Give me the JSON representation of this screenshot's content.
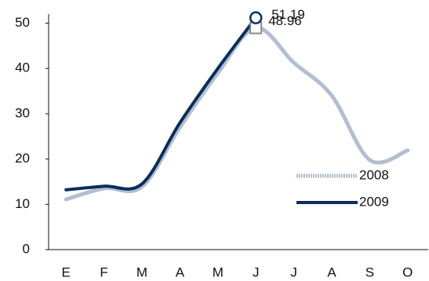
{
  "chart_data": {
    "type": "line",
    "categories": [
      "E",
      "F",
      "M",
      "A",
      "M",
      "J",
      "J",
      "A",
      "S",
      "O"
    ],
    "series": [
      {
        "name": "2008",
        "color": "#b3bfd0",
        "values": [
          11.1,
          13.5,
          13.9,
          27,
          39,
          48.96,
          41.3,
          34,
          19.8,
          21.9
        ]
      },
      {
        "name": "2009",
        "color": "#0b2d5a",
        "values": [
          13.2,
          14,
          14.5,
          28,
          40,
          51.19,
          null,
          null,
          null,
          null
        ]
      }
    ],
    "ylim": [
      0,
      52
    ],
    "yticks": [
      0,
      10,
      20,
      30,
      40,
      50
    ],
    "grid": false,
    "legend": "right"
  }
}
